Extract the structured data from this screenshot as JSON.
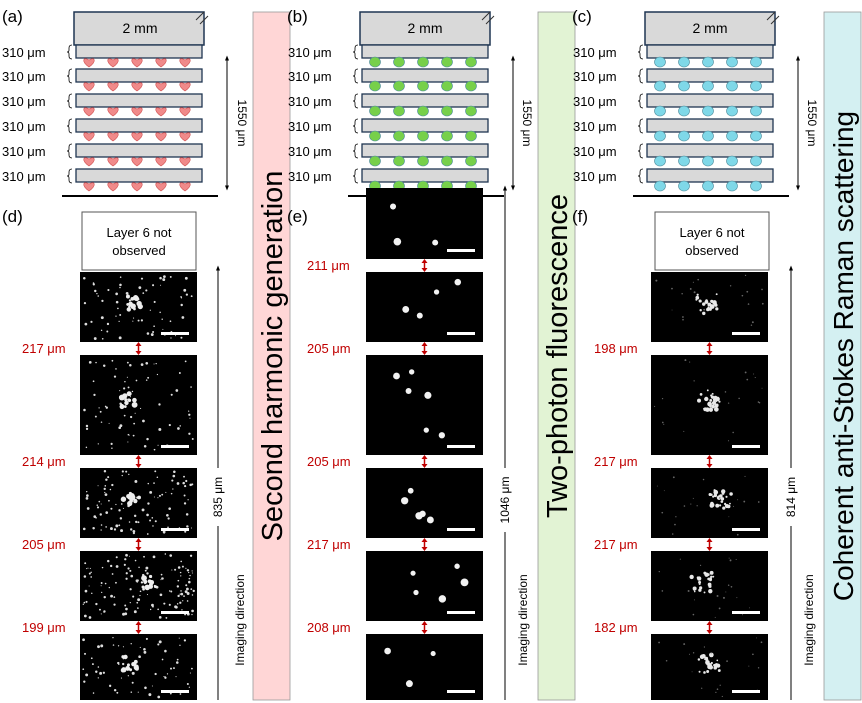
{
  "colors": {
    "shg": "#f08a8a",
    "tpf": "#77d04a",
    "cars": "#7fd8e8",
    "dist_red": "#c00000",
    "band_shg": "#ffd6d6",
    "band_tpf": "#e2f3d4",
    "band_cars": "#d4f0f2",
    "slab_fill": "#d9d9d9",
    "slab_stroke": "#1f3552"
  },
  "panels": [
    {
      "schematic_label": "(a)",
      "image_label": "(d)",
      "substrate_label": "2 mm",
      "layer_thickness_labels": [
        "310 μm",
        "310 μm",
        "310 μm",
        "310 μm",
        "310 μm",
        "310 μm"
      ],
      "stack_height_label": "1550 μm",
      "marker": "heart",
      "missing_layer_text": [
        "Layer 6 not",
        "observed"
      ],
      "distances": [
        "217 μm",
        "214 μm",
        "205 μm",
        "199 μm"
      ],
      "imaging_span_label": "835 μm",
      "imaging_direction_label": "Imaging direction",
      "modality": "Second harmonic generation"
    },
    {
      "schematic_label": "(b)",
      "image_label": "(e)",
      "substrate_label": "2 mm",
      "layer_thickness_labels": [
        "310 μm",
        "310 μm",
        "310 μm",
        "310 μm",
        "310 μm",
        "310 μm"
      ],
      "stack_height_label": "1550 μm",
      "marker": "green-dot",
      "missing_layer_text": null,
      "distances": [
        "211 μm",
        "205 μm",
        "205 μm",
        "217 μm",
        "208 μm"
      ],
      "imaging_span_label": "1046 μm",
      "imaging_direction_label": "Imaging direction",
      "modality": "Two-photon fluorescence"
    },
    {
      "schematic_label": "(c)",
      "image_label": "(f)",
      "substrate_label": "2 mm",
      "layer_thickness_labels": [
        "310 μm",
        "310 μm",
        "310 μm",
        "310 μm",
        "310 μm",
        "310 μm"
      ],
      "stack_height_label": "1550 μm",
      "marker": "cyan-dot",
      "missing_layer_text": [
        "Layer 6 not",
        "observed"
      ],
      "distances": [
        "198 μm",
        "217 μm",
        "217 μm",
        "182 μm"
      ],
      "imaging_span_label": "814 μm",
      "imaging_direction_label": "Imaging direction",
      "modality": "Coherent anti-Stokes Raman scattering"
    }
  ]
}
